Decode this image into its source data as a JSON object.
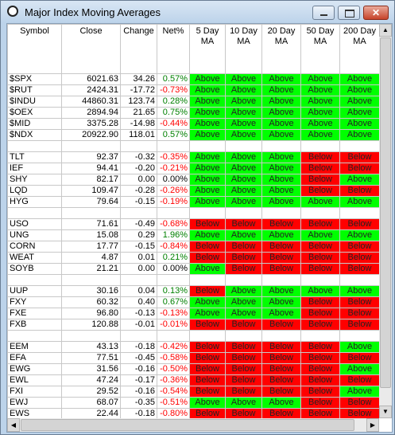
{
  "window": {
    "title": "Major Index Moving Averages"
  },
  "table": {
    "columns": [
      [
        "Symbol"
      ],
      [
        "Close"
      ],
      [
        "Change"
      ],
      [
        "Net%"
      ],
      [
        "5 Day",
        "MA"
      ],
      [
        "10 Day",
        "MA"
      ],
      [
        "20 Day",
        "MA"
      ],
      [
        "50 Day",
        "MA"
      ],
      [
        "200 Day",
        "MA"
      ]
    ],
    "status_colors": {
      "Above": "#00ff00",
      "Below": "#ff0000"
    },
    "groups": [
      {
        "rows": [
          [
            "$SPX",
            "6021.63",
            "34.26",
            "0.57%",
            "Above",
            "Above",
            "Above",
            "Above",
            "Above"
          ],
          [
            "$RUT",
            "2424.31",
            "-17.72",
            "-0.73%",
            "Above",
            "Above",
            "Above",
            "Above",
            "Above"
          ],
          [
            "$INDU",
            "44860.31",
            "123.74",
            "0.28%",
            "Above",
            "Above",
            "Above",
            "Above",
            "Above"
          ],
          [
            "$OEX",
            "2894.94",
            "21.65",
            "0.75%",
            "Above",
            "Above",
            "Above",
            "Above",
            "Above"
          ],
          [
            "$MID",
            "3375.28",
            "-14.98",
            "-0.44%",
            "Above",
            "Above",
            "Above",
            "Above",
            "Above"
          ],
          [
            "$NDX",
            "20922.90",
            "118.01",
            "0.57%",
            "Above",
            "Above",
            "Above",
            "Above",
            "Above"
          ]
        ]
      },
      {
        "rows": [
          [
            "TLT",
            "92.37",
            "-0.32",
            "-0.35%",
            "Above",
            "Above",
            "Above",
            "Below",
            "Below"
          ],
          [
            "IEF",
            "94.41",
            "-0.20",
            "-0.21%",
            "Above",
            "Above",
            "Above",
            "Below",
            "Below"
          ],
          [
            "SHY",
            "82.17",
            "0.00",
            "0.00%",
            "Above",
            "Above",
            "Above",
            "Below",
            "Above"
          ],
          [
            "LQD",
            "109.47",
            "-0.28",
            "-0.26%",
            "Above",
            "Above",
            "Above",
            "Below",
            "Below"
          ],
          [
            "HYG",
            "79.64",
            "-0.15",
            "-0.19%",
            "Above",
            "Above",
            "Above",
            "Above",
            "Above"
          ]
        ]
      },
      {
        "rows": [
          [
            "USO",
            "71.61",
            "-0.49",
            "-0.68%",
            "Below",
            "Below",
            "Below",
            "Below",
            "Below"
          ],
          [
            "UNG",
            "15.08",
            "0.29",
            "1.96%",
            "Above",
            "Above",
            "Above",
            "Above",
            "Above"
          ],
          [
            "CORN",
            "17.77",
            "-0.15",
            "-0.84%",
            "Below",
            "Below",
            "Below",
            "Below",
            "Below"
          ],
          [
            "WEAT",
            "4.87",
            "0.01",
            "0.21%",
            "Below",
            "Below",
            "Below",
            "Below",
            "Below"
          ],
          [
            "SOYB",
            "21.21",
            "0.00",
            "0.00%",
            "Above",
            "Below",
            "Below",
            "Below",
            "Below"
          ]
        ]
      },
      {
        "rows": [
          [
            "UUP",
            "30.16",
            "0.04",
            "0.13%",
            "Below",
            "Above",
            "Above",
            "Above",
            "Above"
          ],
          [
            "FXY",
            "60.32",
            "0.40",
            "0.67%",
            "Above",
            "Above",
            "Above",
            "Below",
            "Below"
          ],
          [
            "FXE",
            "96.80",
            "-0.13",
            "-0.13%",
            "Above",
            "Above",
            "Above",
            "Below",
            "Below"
          ],
          [
            "FXB",
            "120.88",
            "-0.01",
            "-0.01%",
            "Below",
            "Below",
            "Below",
            "Below",
            "Below"
          ]
        ]
      },
      {
        "rows": [
          [
            "EEM",
            "43.13",
            "-0.18",
            "-0.42%",
            "Below",
            "Below",
            "Below",
            "Below",
            "Above"
          ],
          [
            "EFA",
            "77.51",
            "-0.45",
            "-0.58%",
            "Below",
            "Below",
            "Below",
            "Below",
            "Below"
          ],
          [
            "EWG",
            "31.56",
            "-0.16",
            "-0.50%",
            "Below",
            "Below",
            "Below",
            "Below",
            "Above"
          ],
          [
            "EWL",
            "47.24",
            "-0.17",
            "-0.36%",
            "Below",
            "Below",
            "Below",
            "Below",
            "Below"
          ],
          [
            "FXI",
            "29.52",
            "-0.16",
            "-0.54%",
            "Below",
            "Below",
            "Below",
            "Below",
            "Above"
          ],
          [
            "EWJ",
            "68.07",
            "-0.35",
            "-0.51%",
            "Above",
            "Above",
            "Above",
            "Below",
            "Below"
          ],
          [
            "EWS",
            "22.44",
            "-0.18",
            "-0.80%",
            "Below",
            "Below",
            "Below",
            "Below",
            "Below"
          ]
        ]
      }
    ]
  }
}
